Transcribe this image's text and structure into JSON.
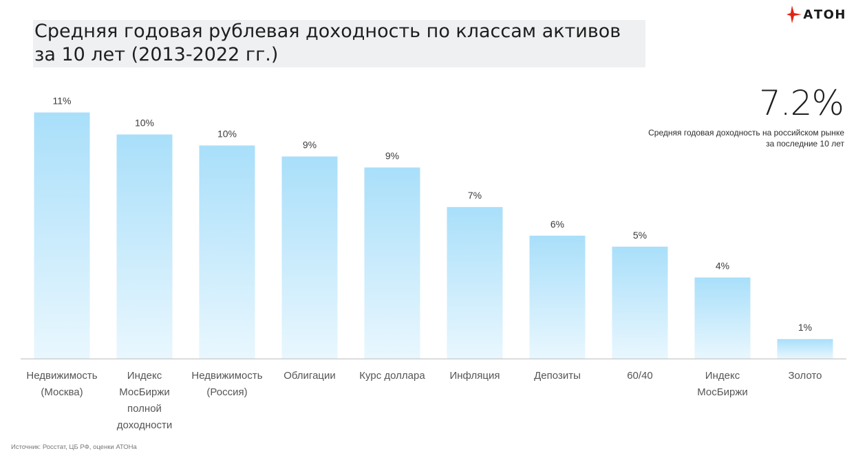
{
  "header": {
    "title": "Средняя годовая рублевая доходность по классам активов за 10 лет (2013-2022 гг.)",
    "logo_text": "АТОН"
  },
  "kpi": {
    "value": "7.2%",
    "caption": "Средняя годовая доходность на российском рынке за последние 10 лет"
  },
  "source": "Источник: Росстат, ЦБ РФ, оценки АТОНа",
  "colors": {
    "bar_top": "#a9dffa",
    "bar_bottom": "#e9f7fe",
    "logo_accent": "#e42313",
    "axis": "#b8b8b8"
  },
  "chart_data": {
    "type": "bar",
    "categories": [
      [
        "Недвижимость",
        "(Москва)"
      ],
      [
        "Индекс",
        "МосБиржи",
        "полной",
        "доходности"
      ],
      [
        "Недвижимость",
        "(Россия)"
      ],
      [
        "Облигации"
      ],
      [
        "Курс доллара"
      ],
      [
        "Инфляция"
      ],
      [
        "Депозиты"
      ],
      [
        "60/40"
      ],
      [
        "Индекс",
        "МосБиржи"
      ],
      [
        "Золото"
      ]
    ],
    "values": [
      11.2,
      10.2,
      9.7,
      9.2,
      8.7,
      6.9,
      5.6,
      5.1,
      3.7,
      0.9
    ],
    "data_labels": [
      "11%",
      "10%",
      "10%",
      "9%",
      "9%",
      "7%",
      "6%",
      "5%",
      "4%",
      "1%"
    ],
    "ylim": [
      0,
      12
    ],
    "grid": false,
    "legend": "none"
  }
}
